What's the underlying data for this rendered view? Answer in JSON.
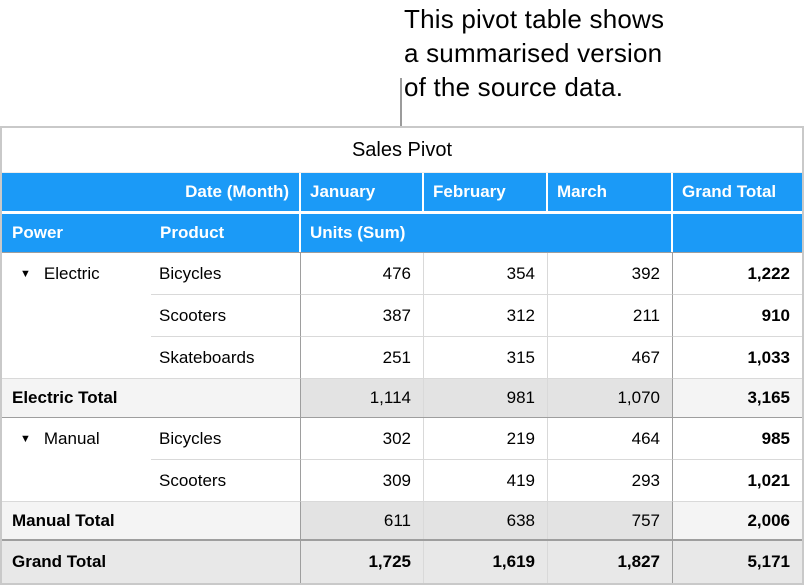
{
  "callout": {
    "lines": [
      "This pivot table shows",
      "a summarised version",
      "of the source data."
    ]
  },
  "icons": {
    "disclosure_triangle": "▼"
  },
  "colors": {
    "header_blue": "#1B9AF7",
    "header_text": "#FFFFFF",
    "total_label_bg": "#F4F4F4",
    "total_value_bg": "#E3E3E3",
    "grand_row_bg": "#E8E8E8",
    "dark_gridline": "#9E9E9E",
    "light_gridline": "#D9D9D9",
    "outer_border": "#C9C9C9"
  },
  "table": {
    "title": "Sales Pivot",
    "header_row1": {
      "date_month_label": "Date (Month)",
      "months": [
        "January",
        "February",
        "March"
      ],
      "grand_total_label": "Grand Total"
    },
    "header_row2": {
      "power_label": "Power",
      "product_label": "Product",
      "units_label": "Units (Sum)"
    },
    "groups": [
      {
        "name": "Electric",
        "rows": [
          {
            "product": "Bicycles",
            "values": [
              "476",
              "354",
              "392"
            ],
            "row_total": "1,222"
          },
          {
            "product": "Scooters",
            "values": [
              "387",
              "312",
              "211"
            ],
            "row_total": "910"
          },
          {
            "product": "Skateboards",
            "values": [
              "251",
              "315",
              "467"
            ],
            "row_total": "1,033"
          }
        ],
        "total": {
          "label": "Electric Total",
          "values": [
            "1,114",
            "981",
            "1,070"
          ],
          "row_total": "3,165"
        }
      },
      {
        "name": "Manual",
        "rows": [
          {
            "product": "Bicycles",
            "values": [
              "302",
              "219",
              "464"
            ],
            "row_total": "985"
          },
          {
            "product": "Scooters",
            "values": [
              "309",
              "419",
              "293"
            ],
            "row_total": "1,021"
          }
        ],
        "total": {
          "label": "Manual Total",
          "values": [
            "611",
            "638",
            "757"
          ],
          "row_total": "2,006"
        }
      }
    ],
    "grand_total": {
      "label": "Grand Total",
      "values": [
        "1,725",
        "1,619",
        "1,827"
      ],
      "row_total": "5,171"
    }
  }
}
